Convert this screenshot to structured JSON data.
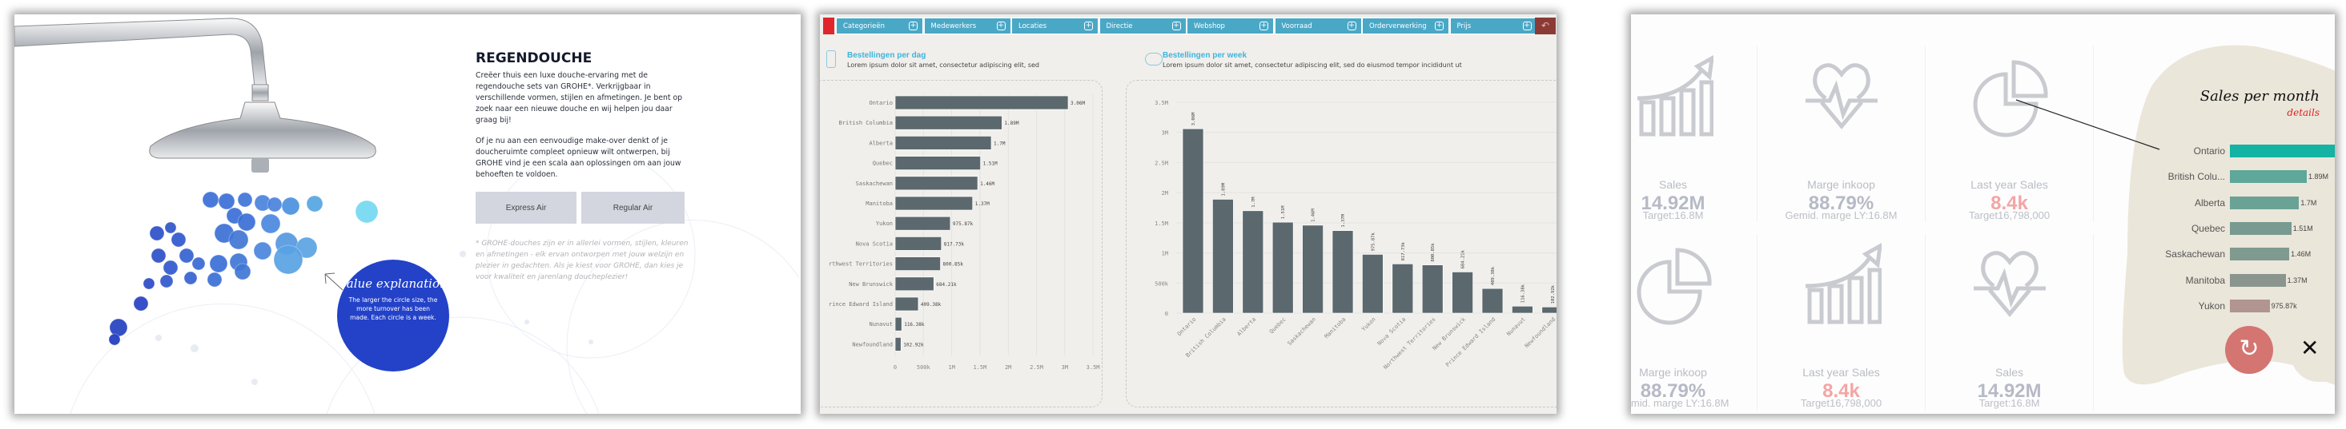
{
  "panel1": {
    "title": "REGENDOUCHE",
    "paragraphs": [
      "Creëer thuis een luxe douche-ervaring met de regendouche sets van GROHE*. Verkrijgbaar in verschillende vormen, stijlen en afmetingen. Je bent op zoek naar een nieuwe douche en wij helpen jou daar graag bij!",
      "Of je nu aan een eenvoudige make-over denkt of je doucheruimte compleet opnieuw wilt ontwerpen, bij GROHE vind je een scala aan oplossingen om aan jouw behoeften te voldoen."
    ],
    "buttons": [
      "Express Air",
      "Regular Air"
    ],
    "footnote": "* GROHE-douches zijn er in allerlei vormen, stijlen, kleuren en afmetingen - elk ervan ontworpen met jouw welzijn en plezier in gedachten. Als je kiest voor GROHE, dan kies je voor kwaliteit en jarenlang doucheplezier!",
    "explanation": {
      "title": "Value explanation",
      "text": "The larger the circle size, the more turnover has been made. Each circle is a week."
    },
    "colors": {
      "circle": "#2342c8"
    }
  },
  "panel2": {
    "nav": [
      "Categorieën",
      "Medewerkers",
      "Locaties",
      "Directie",
      "Webshop",
      "Voorraad",
      "Orderverwerking",
      "Prijs"
    ],
    "colors": {
      "tab": "#4aa8c7",
      "back": "#8b3a36",
      "bar": "#5b686d",
      "title": "#40b4dc"
    },
    "left": {
      "title": "Bestellingen per dag",
      "subtitle": "Lorem ipsum dolor sit amet, consectetur adipiscing elit, sed"
    },
    "right": {
      "title": "Bestellingen per week",
      "subtitle": "Lorem ipsum dolor sit amet, consectetur adipiscing elit, sed do eiusmod tempor incididunt ut"
    }
  },
  "chart_data": [
    {
      "type": "bar",
      "orientation": "horizontal",
      "categories": [
        "Ontario",
        "British Columbia",
        "Alberta",
        "Quebec",
        "Saskachewan",
        "Manitoba",
        "Yukon",
        "Nova Scotia",
        "Northwest Territories",
        "New Brunswick",
        "Prince Edward Island",
        "Nunavut",
        "Newfoundland"
      ],
      "values": [
        3060000,
        1890000,
        1700000,
        1510000,
        1460000,
        1370000,
        975870,
        817730,
        800850,
        684210,
        409380,
        116380,
        102920
      ],
      "labels": [
        "3.06M",
        "1.89M",
        "1.7M",
        "1.51M",
        "1.46M",
        "1.37M",
        "975.87k",
        "817.73k",
        "800.85k",
        "684.21k",
        "409.38k",
        "116.38k",
        "102.92k"
      ],
      "xlim": [
        0,
        3500000
      ],
      "ticks": [
        "0",
        "500k",
        "1M",
        "1.5M",
        "2M",
        "2.5M",
        "3M",
        "3.5M"
      ],
      "grid": true
    },
    {
      "type": "bar",
      "orientation": "vertical",
      "categories": [
        "Ontario",
        "British Columbia",
        "Alberta",
        "Quebec",
        "Saskachewan",
        "Manitoba",
        "Yukon",
        "Nova Scotia",
        "Northwest Territories",
        "New Brunswick",
        "Prince Edward Island",
        "Nunavut",
        "Newfoundland"
      ],
      "values": [
        3060000,
        1890000,
        1700000,
        1510000,
        1460000,
        1370000,
        975870,
        817730,
        800850,
        684210,
        409380,
        116380,
        102920
      ],
      "labels": [
        "3.06M",
        "1.89M",
        "1.7M",
        "1.51M",
        "1.46M",
        "1.37M",
        "975.87k",
        "817.73k",
        "800.85k",
        "684.21k",
        "409.38k",
        "116.38k",
        "102.92k"
      ],
      "ylim": [
        0,
        3500000
      ],
      "ticks": [
        "0",
        "500k",
        "1M",
        "1.5M",
        "2M",
        "2.5M",
        "3M",
        "3.5M"
      ],
      "grid": true
    }
  ],
  "panel3": {
    "tiles": [
      {
        "label": "Sales",
        "value": "14.92M",
        "target": "Target:16.8M",
        "icon": "growth-chart-icon"
      },
      {
        "label": "Marge inkoop",
        "value": "88.79%",
        "target": "Gemid. marge LY:16.8M",
        "icon": "heartbeat-icon"
      },
      {
        "label": "Last year Sales",
        "value": "8.4k",
        "target": "Target16,798,000",
        "icon": "pie-chart-icon",
        "alert": true
      },
      {
        "label": "Marge inkoop",
        "value": "88.79%",
        "target": "Gemid. marge LY:16.8M",
        "icon": "pie-chart-icon"
      },
      {
        "label": "Last year Sales",
        "value": "8.4k",
        "target": "Target16,798,000",
        "icon": "growth-chart-icon",
        "alert": true
      },
      {
        "label": "Sales",
        "value": "14.92M",
        "target": "Target:16.8M",
        "icon": "heartbeat-icon"
      }
    ],
    "popup": {
      "title": "Sales per month",
      "details": "details",
      "bars": [
        {
          "name": "Ontario",
          "value": 3060000,
          "label": "",
          "color": "#14b3a3"
        },
        {
          "name": "British Colu...",
          "value": 1890000,
          "label": "1.89M",
          "color": "#5fa79a"
        },
        {
          "name": "Alberta",
          "value": 1700000,
          "label": "1.7M",
          "color": "#6aa296"
        },
        {
          "name": "Quebec",
          "value": 1510000,
          "label": "1.51M",
          "color": "#789a90"
        },
        {
          "name": "Saskachewan",
          "value": 1460000,
          "label": "1.46M",
          "color": "#7f9a8f"
        },
        {
          "name": "Manitoba",
          "value": 1370000,
          "label": "1.37M",
          "color": "#8a9590"
        },
        {
          "name": "Yukon",
          "value": 975870,
          "label": "975.87k",
          "color": "#b09590"
        }
      ]
    },
    "colors": {
      "blob": "#ebe6da",
      "refresh": "#d47572",
      "alert": "#f4a5a5"
    }
  }
}
